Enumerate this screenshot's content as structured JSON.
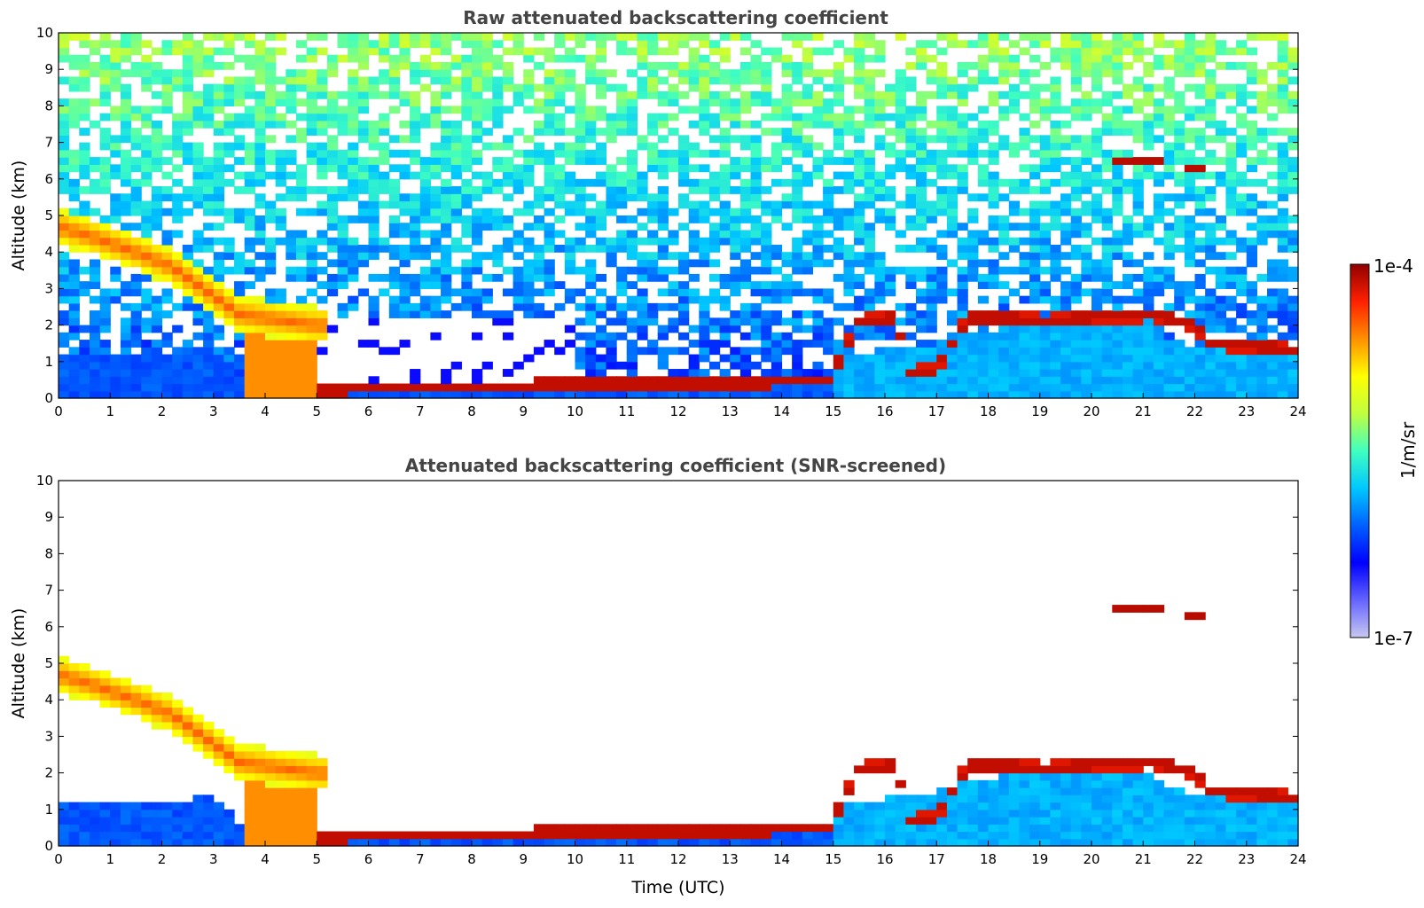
{
  "chart_data": [
    {
      "type": "heatmap",
      "title": "Raw attenuated backscattering coefficient",
      "xlabel": "",
      "ylabel": "Altitude (km)",
      "xlim": [
        0,
        24
      ],
      "ylim": [
        0,
        10
      ],
      "xticks": [
        0,
        1,
        2,
        3,
        4,
        5,
        6,
        7,
        8,
        9,
        10,
        11,
        12,
        13,
        14,
        15,
        16,
        17,
        18,
        19,
        20,
        21,
        22,
        23,
        24
      ],
      "yticks": [
        0,
        1,
        2,
        3,
        4,
        5,
        6,
        7,
        8,
        9,
        10
      ],
      "screened": false,
      "features": {
        "boundary_layer_top_km": [
          [
            0,
            1.2
          ],
          [
            2,
            1.2
          ],
          [
            3,
            1.4
          ],
          [
            3.5,
            0.6
          ],
          [
            5,
            0.25
          ],
          [
            7.8,
            0.25
          ],
          [
            8.2,
            0.35
          ],
          [
            10,
            0.35
          ],
          [
            11,
            0.4
          ],
          [
            13,
            0.38
          ],
          [
            14.9,
            0.45
          ],
          [
            15,
            1.2
          ],
          [
            16,
            1.3
          ],
          [
            17,
            1.5
          ],
          [
            17.5,
            1.8
          ],
          [
            19,
            2.0
          ],
          [
            20,
            2.1
          ],
          [
            21,
            2.0
          ],
          [
            22,
            1.4
          ],
          [
            23.8,
            1.3
          ]
        ],
        "elevated_layer": [
          [
            0,
            4.7
          ],
          [
            0.7,
            4.4
          ],
          [
            1.5,
            4.0
          ],
          [
            2.2,
            3.6
          ],
          [
            3,
            2.8
          ],
          [
            3.5,
            2.3
          ],
          [
            4.5,
            2.1
          ],
          [
            5,
            2.0
          ]
        ],
        "cloud_base_km": [
          [
            5,
            0.2
          ],
          [
            7.8,
            0.3
          ],
          [
            8.2,
            0.35
          ],
          [
            10,
            0.4
          ],
          [
            11,
            0.42
          ],
          [
            13,
            0.4
          ],
          [
            14.9,
            0.45
          ],
          [
            15.5,
            2.1
          ],
          [
            16.2,
            2.2
          ],
          [
            16.5,
            0.7
          ],
          [
            17,
            0.8
          ],
          [
            17.6,
            2.2
          ],
          [
            18.5,
            2.2
          ],
          [
            19,
            2.1
          ],
          [
            19.7,
            2.2
          ],
          [
            21.2,
            2.3
          ],
          [
            22,
            2.0
          ],
          [
            22.3,
            1.5
          ],
          [
            23.5,
            1.4
          ],
          [
            23.8,
            1.3
          ]
        ],
        "cirrus": [
          {
            "x0": 20.3,
            "x1": 21.4,
            "y": 6.55
          },
          {
            "x0": 21.7,
            "x1": 22.2,
            "y": 6.35
          }
        ]
      }
    },
    {
      "type": "heatmap",
      "title": "Attenuated backscattering coefficient (SNR-screened)",
      "xlabel": "Time (UTC)",
      "ylabel": "Altitude (km)",
      "xlim": [
        0,
        24
      ],
      "ylim": [
        0,
        10
      ],
      "xticks": [
        0,
        1,
        2,
        3,
        4,
        5,
        6,
        7,
        8,
        9,
        10,
        11,
        12,
        13,
        14,
        15,
        16,
        17,
        18,
        19,
        20,
        21,
        22,
        23,
        24
      ],
      "yticks": [
        0,
        1,
        2,
        3,
        4,
        5,
        6,
        7,
        8,
        9,
        10
      ],
      "screened": true
    }
  ],
  "colorbar": {
    "label": "1/m/sr",
    "min_label": "1e-7",
    "max_label": "1e-4",
    "scale": "log",
    "range": [
      1e-07,
      0.0001
    ]
  },
  "colors": {
    "jet_stops": [
      "#ffffff",
      "#c8c8f0",
      "#6464ff",
      "#0000ff",
      "#0060ff",
      "#00c8ff",
      "#40ffc0",
      "#c0ff40",
      "#ffff00",
      "#ff9000",
      "#ff2000",
      "#900000"
    ],
    "title_gray": "#444444"
  }
}
